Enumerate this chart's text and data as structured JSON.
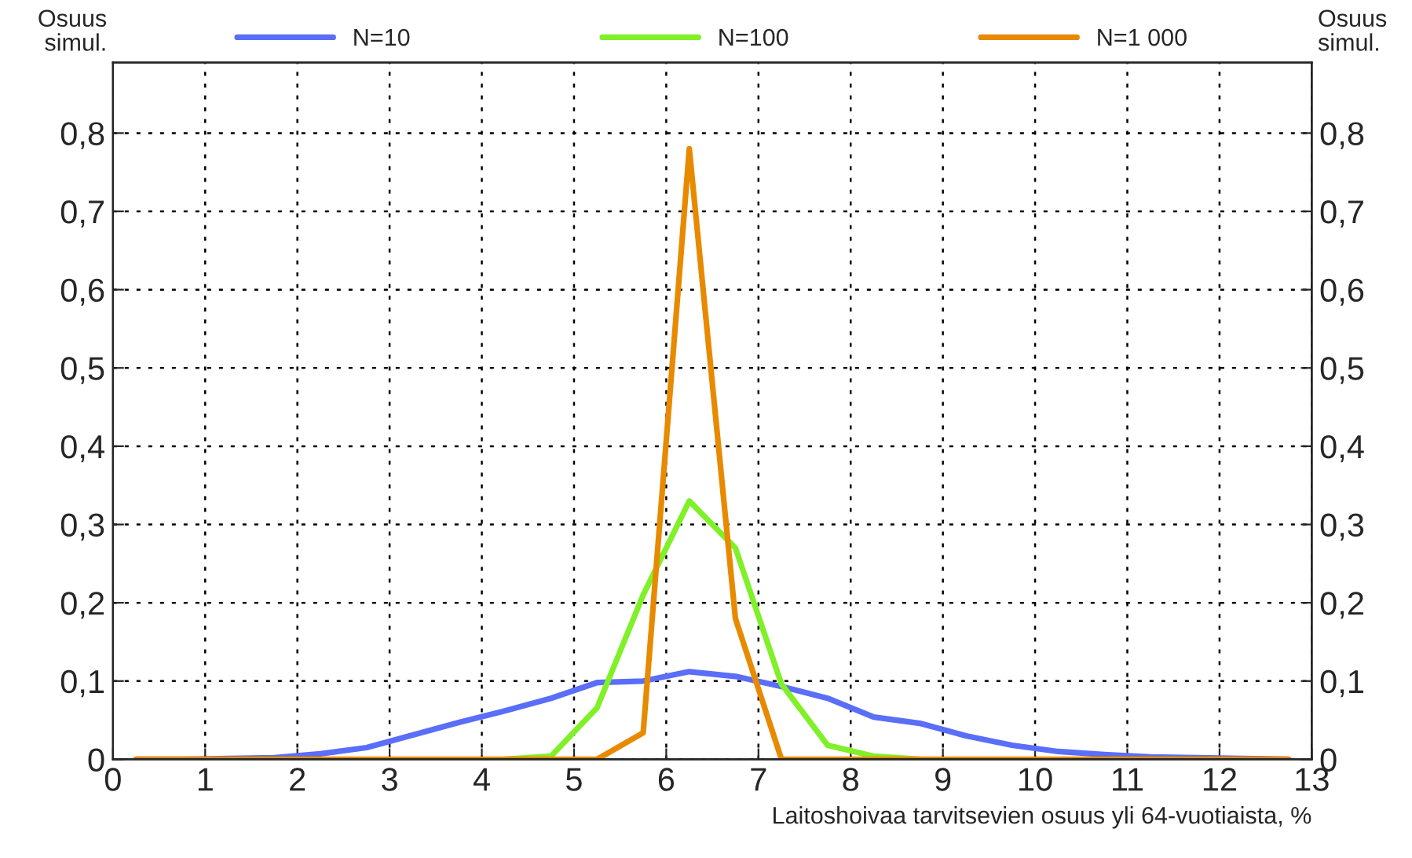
{
  "chart_data": {
    "type": "line",
    "xlabel": "Laitoshoivaa tarvitsevien osuus yli 64-vuotiaista, %",
    "ylabel": "Osuus\nsimul.",
    "y2label": "Osuus\nsimul.",
    "x": [
      0.25,
      0.75,
      1.25,
      1.75,
      2.25,
      2.75,
      3.25,
      3.75,
      4.25,
      4.75,
      5.25,
      5.75,
      6.25,
      6.75,
      7.25,
      7.75,
      8.25,
      8.75,
      9.25,
      9.75,
      10.25,
      10.75,
      11.25,
      11.75,
      12.25,
      12.75
    ],
    "series": [
      {
        "name": "N=10",
        "color": "#5a6ef8",
        "values": [
          0,
          0,
          0.001,
          0.002,
          0.007,
          0.015,
          0.031,
          0.047,
          0.062,
          0.078,
          0.098,
          0.1,
          0.112,
          0.106,
          0.093,
          0.078,
          0.054,
          0.046,
          0.03,
          0.018,
          0.01,
          0.006,
          0.003,
          0.002,
          0.001,
          0
        ]
      },
      {
        "name": "N=100",
        "color": "#80f029",
        "values": [
          null,
          null,
          null,
          null,
          null,
          null,
          null,
          null,
          0,
          0.004,
          0.066,
          0.21,
          0.33,
          0.27,
          0.096,
          0.018,
          0.004,
          0,
          null,
          null,
          null,
          null,
          null,
          null,
          null,
          null
        ]
      },
      {
        "name": "N=1 000",
        "color": "#e88a00",
        "values": [
          0,
          0,
          0,
          0,
          0,
          0,
          0,
          0,
          0,
          0,
          0,
          0.034,
          0.78,
          0.18,
          0,
          0,
          0,
          0,
          0,
          0,
          0,
          0,
          0,
          0,
          0,
          0
        ]
      }
    ],
    "xlim": [
      0,
      13
    ],
    "xticks": [
      0,
      1,
      2,
      3,
      4,
      5,
      6,
      7,
      8,
      9,
      10,
      11,
      12,
      13
    ],
    "ylim": [
      0,
      0.89
    ],
    "yticks": [
      {
        "value": 0,
        "label": "0"
      },
      {
        "value": 0.1,
        "label": "0,1"
      },
      {
        "value": 0.2,
        "label": "0,2"
      },
      {
        "value": 0.3,
        "label": "0,3"
      },
      {
        "value": 0.4,
        "label": "0,4"
      },
      {
        "value": 0.5,
        "label": "0,5"
      },
      {
        "value": 0.6,
        "label": "0,6"
      },
      {
        "value": 0.7,
        "label": "0,7"
      },
      {
        "value": 0.8,
        "label": "0,8"
      }
    ],
    "y2lim": [
      0,
      0.89
    ],
    "y2ticks": [
      {
        "value": 0,
        "label": "0"
      },
      {
        "value": 0.1,
        "label": "0,1"
      },
      {
        "value": 0.2,
        "label": "0,2"
      },
      {
        "value": 0.3,
        "label": "0,3"
      },
      {
        "value": 0.4,
        "label": "0,4"
      },
      {
        "value": 0.5,
        "label": "0,5"
      },
      {
        "value": 0.6,
        "label": "0,6"
      },
      {
        "value": 0.7,
        "label": "0,7"
      },
      {
        "value": 0.8,
        "label": "0,8"
      }
    ],
    "grid": true,
    "legend": "top",
    "marker": "none",
    "line_style": "solid"
  }
}
